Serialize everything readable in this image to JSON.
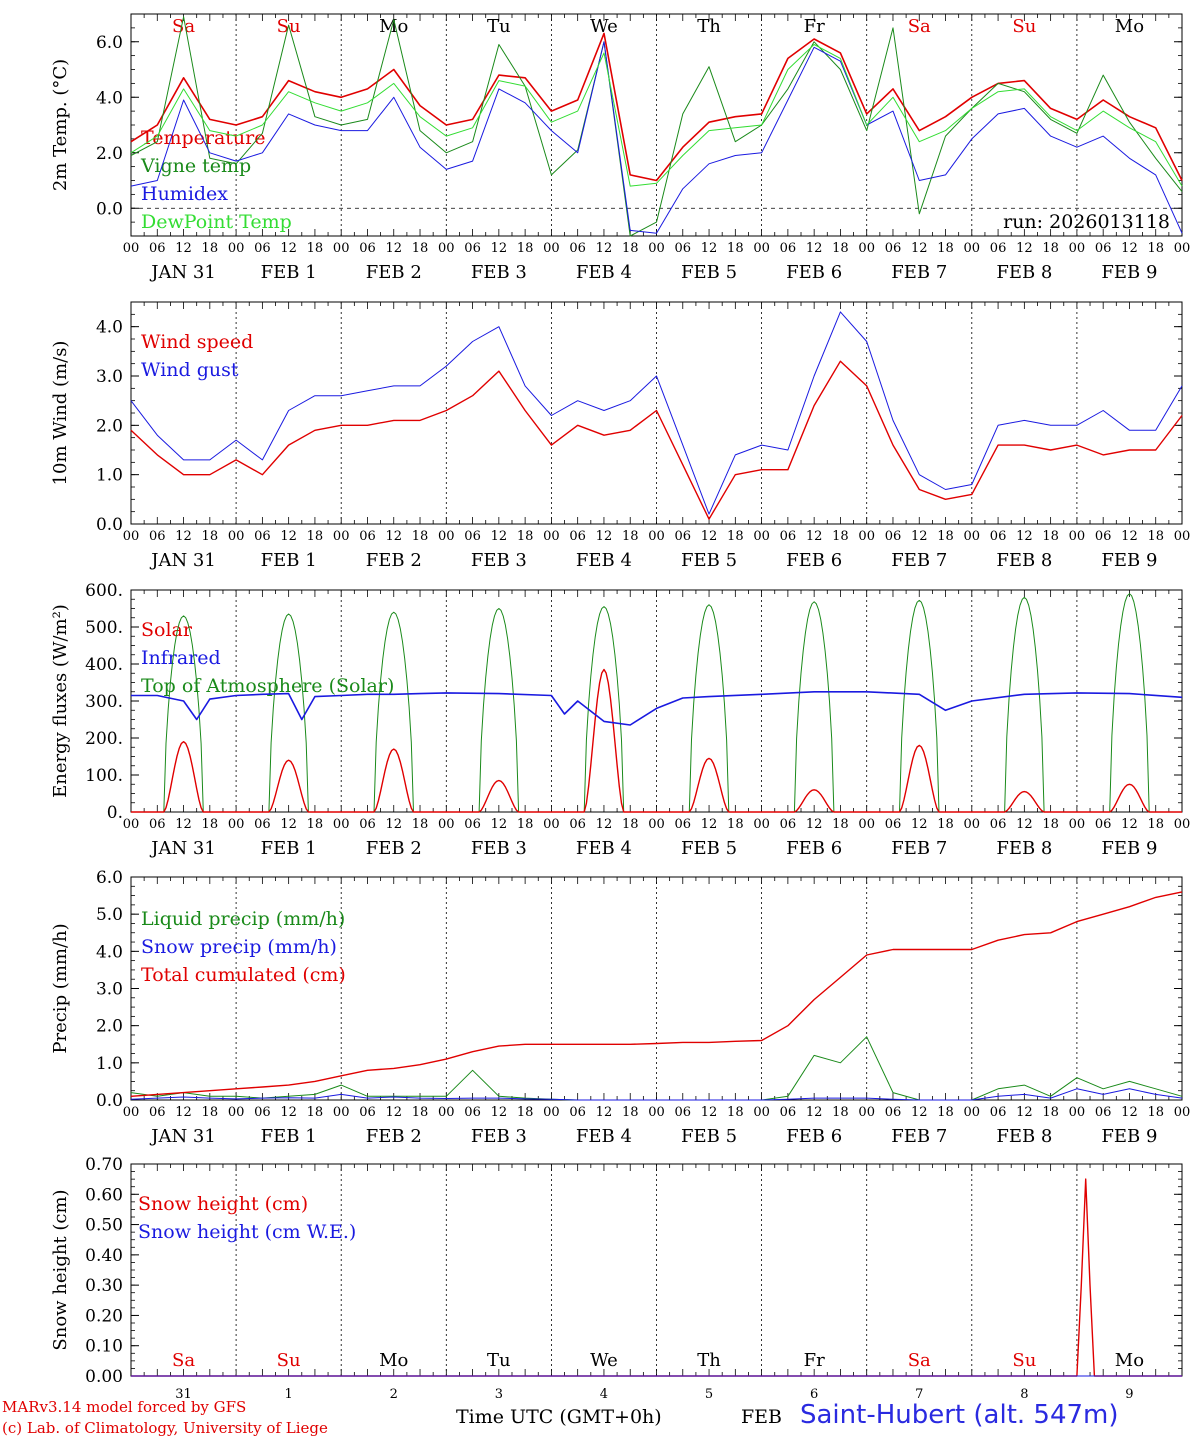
{
  "station_title": "Saint-Hubert (alt. 547m)",
  "credit_line1": "MARv3.14 model forced by GFS",
  "credit_line2": "(c) Lab. of Climatology, University of Liege",
  "xaxis_title": "Time UTC (GMT+0h)",
  "month_label": "FEB",
  "hour_ticks": [
    "00",
    "06",
    "12",
    "18"
  ],
  "last_tick": "00",
  "date_labels": [
    "JAN 31",
    "FEB  1",
    "FEB  2",
    "FEB  3",
    "FEB  4",
    "FEB  5",
    "FEB  6",
    "FEB  7",
    "FEB  8",
    "FEB  9"
  ],
  "day_names": [
    "Sa",
    "Su",
    "Mo",
    "Tu",
    "We",
    "Th",
    "Fr",
    "Sa",
    "Su",
    "Mo"
  ],
  "day_name_colors": [
    "#e00000",
    "#e00000",
    "#000000",
    "#000000",
    "#000000",
    "#000000",
    "#000000",
    "#e00000",
    "#e00000",
    "#000000"
  ],
  "day_numbers": [
    "31",
    "1",
    "2",
    "3",
    "4",
    "5",
    "6",
    "7",
    "8",
    "9"
  ],
  "colors": {
    "red": "#e00000",
    "green": "#1a8a1a",
    "blue": "#1a1ae0",
    "lightgreen": "#33dd33"
  },
  "run_label": "run: 2026013118",
  "chart_data": [
    {
      "type": "line",
      "ylabel": "2m Temp. (°C)",
      "ylim": [
        -1,
        7
      ],
      "yticks": [
        "0.0",
        "2.0",
        "4.0",
        "6.0"
      ],
      "ytick_values": [
        0,
        2,
        4,
        6
      ],
      "zero_line": true,
      "legend": [
        {
          "name": "Temperature",
          "color": "#e00000"
        },
        {
          "name": "Vigne temp",
          "color": "#1a8a1a"
        },
        {
          "name": "Humidex",
          "color": "#1a1ae0"
        },
        {
          "name": "DewPoint Temp",
          "color": "#33dd33"
        }
      ],
      "x_hours": [
        0,
        6,
        12,
        18,
        24,
        30,
        36,
        42,
        48,
        54,
        60,
        66,
        72,
        78,
        84,
        90,
        96,
        102,
        108,
        114,
        120,
        126,
        132,
        138,
        144,
        150,
        156,
        162,
        168,
        174,
        180,
        186,
        192,
        198,
        204,
        210,
        216,
        222,
        228,
        234,
        240
      ],
      "series": [
        {
          "name": "Temperature",
          "color": "#e00000",
          "width": 1.6,
          "values": [
            2.4,
            3.0,
            4.7,
            3.2,
            3.0,
            3.3,
            4.6,
            4.2,
            4.0,
            4.3,
            5.0,
            3.7,
            3.0,
            3.2,
            4.8,
            4.7,
            3.5,
            3.9,
            6.3,
            1.2,
            1.0,
            2.2,
            3.1,
            3.3,
            3.4,
            5.4,
            6.1,
            5.6,
            3.4,
            4.3,
            2.8,
            3.3,
            4.0,
            4.5,
            4.6,
            3.6,
            3.2,
            3.9,
            3.3,
            2.9,
            1.0
          ]
        },
        {
          "name": "Vigne temp",
          "color": "#1a8a1a",
          "width": 1.0,
          "values": [
            1.9,
            2.4,
            6.9,
            1.8,
            1.6,
            2.7,
            6.6,
            3.3,
            3.0,
            3.2,
            6.8,
            2.8,
            2.0,
            2.4,
            5.9,
            4.4,
            1.2,
            2.1,
            6.0,
            -1.2,
            -0.5,
            3.4,
            5.1,
            2.4,
            3.0,
            4.3,
            6.0,
            5.0,
            2.8,
            6.5,
            -0.2,
            2.6,
            3.6,
            4.5,
            4.2,
            3.2,
            2.7,
            4.8,
            3.1,
            1.8,
            0.6
          ]
        },
        {
          "name": "Humidex",
          "color": "#1a1ae0",
          "width": 1.0,
          "values": [
            0.8,
            1.0,
            3.9,
            2.0,
            1.7,
            2.0,
            3.4,
            3.0,
            2.8,
            2.8,
            4.0,
            2.2,
            1.4,
            1.7,
            4.3,
            3.8,
            2.8,
            2.0,
            6.0,
            -0.8,
            -0.9,
            0.7,
            1.6,
            1.9,
            2.0,
            3.9,
            5.8,
            5.3,
            3.0,
            3.5,
            1.0,
            1.2,
            2.5,
            3.4,
            3.6,
            2.6,
            2.2,
            2.6,
            1.8,
            1.2,
            -0.9
          ]
        },
        {
          "name": "DewPoint Temp",
          "color": "#33dd33",
          "width": 1.0,
          "values": [
            2.0,
            2.6,
            4.3,
            2.8,
            2.6,
            3.0,
            4.2,
            3.8,
            3.5,
            3.8,
            4.5,
            3.3,
            2.6,
            2.9,
            4.6,
            4.4,
            3.1,
            3.5,
            5.6,
            0.8,
            0.9,
            1.9,
            2.8,
            2.9,
            3.0,
            5.0,
            5.9,
            5.4,
            3.0,
            4.0,
            2.4,
            2.8,
            3.6,
            4.2,
            4.3,
            3.3,
            2.8,
            3.5,
            2.9,
            2.4,
            0.8
          ]
        }
      ]
    },
    {
      "type": "line",
      "ylabel": "10m Wind (m/s)",
      "ylim": [
        0,
        4.5
      ],
      "yticks": [
        "0.0",
        "1.0",
        "2.0",
        "3.0",
        "4.0"
      ],
      "ytick_values": [
        0,
        1,
        2,
        3,
        4
      ],
      "legend": [
        {
          "name": "Wind speed",
          "color": "#e00000"
        },
        {
          "name": "Wind gust",
          "color": "#1a1ae0"
        }
      ],
      "x_hours": [
        0,
        6,
        12,
        18,
        24,
        30,
        36,
        42,
        48,
        54,
        60,
        66,
        72,
        78,
        84,
        90,
        96,
        102,
        108,
        114,
        120,
        126,
        132,
        138,
        144,
        150,
        156,
        162,
        168,
        174,
        180,
        186,
        192,
        198,
        204,
        210,
        216,
        222,
        228,
        234,
        240
      ],
      "series": [
        {
          "name": "Wind speed",
          "color": "#e00000",
          "width": 1.4,
          "values": [
            1.9,
            1.4,
            1.0,
            1.0,
            1.3,
            1.0,
            1.6,
            1.9,
            2.0,
            2.0,
            2.1,
            2.1,
            2.3,
            2.6,
            3.1,
            2.3,
            1.6,
            2.0,
            1.8,
            1.9,
            2.3,
            1.2,
            0.1,
            1.0,
            1.1,
            1.1,
            2.4,
            3.3,
            2.8,
            1.6,
            0.7,
            0.5,
            0.6,
            1.6,
            1.6,
            1.5,
            1.6,
            1.4,
            1.5,
            1.5,
            2.2
          ]
        },
        {
          "name": "Wind gust",
          "color": "#1a1ae0",
          "width": 1.0,
          "values": [
            2.5,
            1.8,
            1.3,
            1.3,
            1.7,
            1.3,
            2.3,
            2.6,
            2.6,
            2.7,
            2.8,
            2.8,
            3.2,
            3.7,
            4.0,
            2.8,
            2.2,
            2.5,
            2.3,
            2.5,
            3.0,
            1.6,
            0.2,
            1.4,
            1.6,
            1.5,
            3.0,
            4.3,
            3.7,
            2.1,
            1.0,
            0.7,
            0.8,
            2.0,
            2.1,
            2.0,
            2.0,
            2.3,
            1.9,
            1.9,
            2.8
          ]
        }
      ]
    },
    {
      "type": "line",
      "ylabel": "Energy fluxes (W/m²)",
      "ylim": [
        0,
        600
      ],
      "yticks": [
        "0.",
        "100.",
        "200.",
        "300.",
        "400.",
        "500.",
        "600."
      ],
      "ytick_values": [
        0,
        100,
        200,
        300,
        400,
        500,
        600
      ],
      "legend": [
        {
          "name": "Solar",
          "color": "#e00000"
        },
        {
          "name": "Infrared",
          "color": "#1a1ae0"
        },
        {
          "name": "Top of Atmosphere (Solar)",
          "color": "#1a8a1a"
        }
      ],
      "solar_noon_hour": 12,
      "daylight_half_width_hours": 4.5,
      "toa_peaks": [
        530,
        535,
        540,
        550,
        555,
        560,
        568,
        572,
        580,
        590
      ],
      "solar_peaks": [
        190,
        140,
        170,
        85,
        385,
        145,
        60,
        180,
        55,
        75
      ],
      "infrared": {
        "x_hours": [
          0,
          6,
          12,
          15,
          18,
          24,
          30,
          36,
          39,
          42,
          48,
          54,
          60,
          66,
          72,
          84,
          96,
          99,
          102,
          108,
          114,
          120,
          126,
          132,
          144,
          156,
          168,
          180,
          186,
          192,
          204,
          216,
          228,
          240
        ],
        "values": [
          315,
          315,
          300,
          250,
          305,
          315,
          318,
          320,
          250,
          312,
          315,
          318,
          318,
          320,
          322,
          320,
          315,
          265,
          300,
          245,
          235,
          280,
          308,
          312,
          318,
          325,
          325,
          318,
          275,
          300,
          318,
          322,
          320,
          310
        ]
      },
      "series": [
        {
          "name": "Solar",
          "color": "#e00000",
          "width": 1.4
        },
        {
          "name": "Infrared",
          "color": "#1a1ae0",
          "width": 1.6
        },
        {
          "name": "Top of Atmosphere (Solar)",
          "color": "#1a8a1a",
          "width": 1.0
        }
      ]
    },
    {
      "type": "line",
      "ylabel": "Precip (mm/h)",
      "ylim": [
        0,
        6
      ],
      "yticks": [
        "0.0",
        "1.0",
        "2.0",
        "3.0",
        "4.0",
        "5.0",
        "6.0"
      ],
      "ytick_values": [
        0,
        1,
        2,
        3,
        4,
        5,
        6
      ],
      "legend": [
        {
          "name": "Liquid precip (mm/h)",
          "color": "#1a8a1a"
        },
        {
          "name": "Snow precip (mm/h)",
          "color": "#1a1ae0"
        },
        {
          "name": "Total cumulated (cm)",
          "color": "#e00000"
        }
      ],
      "x_hours": [
        0,
        6,
        12,
        18,
        24,
        30,
        36,
        42,
        48,
        54,
        60,
        66,
        72,
        78,
        84,
        90,
        96,
        102,
        108,
        114,
        120,
        126,
        132,
        138,
        144,
        150,
        156,
        162,
        168,
        174,
        180,
        186,
        192,
        198,
        204,
        210,
        216,
        222,
        228,
        234,
        240
      ],
      "series": [
        {
          "name": "Liquid precip (mm/h)",
          "color": "#1a8a1a",
          "width": 1.0,
          "values": [
            0.2,
            0.1,
            0.2,
            0.1,
            0.1,
            0.05,
            0.1,
            0.15,
            0.4,
            0.1,
            0.1,
            0.1,
            0.1,
            0.8,
            0.1,
            0.05,
            0.02,
            0.0,
            0.0,
            0.0,
            0.0,
            0.0,
            0.0,
            0.0,
            0.0,
            0.1,
            1.2,
            1.0,
            1.7,
            0.2,
            0.0,
            0.0,
            0.0,
            0.3,
            0.4,
            0.1,
            0.6,
            0.3,
            0.5,
            0.3,
            0.1
          ]
        },
        {
          "name": "Snow precip (mm/h)",
          "color": "#1a1ae0",
          "width": 1.0,
          "values": [
            0.02,
            0.05,
            0.08,
            0.05,
            0.03,
            0.05,
            0.06,
            0.05,
            0.15,
            0.05,
            0.08,
            0.05,
            0.04,
            0.05,
            0.05,
            0.03,
            0.02,
            0.0,
            0.0,
            0.0,
            0.0,
            0.0,
            0.0,
            0.0,
            0.0,
            0.02,
            0.05,
            0.05,
            0.05,
            0.02,
            0.0,
            0.0,
            0.0,
            0.1,
            0.15,
            0.05,
            0.3,
            0.15,
            0.3,
            0.15,
            0.05
          ]
        },
        {
          "name": "Total cumulated (cm)",
          "color": "#e00000",
          "width": 1.4,
          "values": [
            0.1,
            0.15,
            0.2,
            0.25,
            0.3,
            0.35,
            0.4,
            0.5,
            0.65,
            0.8,
            0.85,
            0.95,
            1.1,
            1.3,
            1.45,
            1.5,
            1.5,
            1.5,
            1.5,
            1.5,
            1.52,
            1.55,
            1.55,
            1.58,
            1.6,
            2.0,
            2.7,
            3.3,
            3.9,
            4.05,
            4.05,
            4.05,
            4.05,
            4.3,
            4.45,
            4.5,
            4.8,
            5.0,
            5.2,
            5.45,
            5.6
          ]
        }
      ]
    },
    {
      "type": "line",
      "ylabel": "Snow height (cm)",
      "ylim": [
        0,
        0.7
      ],
      "yticks": [
        "0.00",
        "0.10",
        "0.20",
        "0.30",
        "0.40",
        "0.50",
        "0.60",
        "0.70"
      ],
      "ytick_values": [
        0,
        0.1,
        0.2,
        0.3,
        0.4,
        0.5,
        0.6,
        0.7
      ],
      "legend": [
        {
          "name": "Snow height (cm)",
          "color": "#e00000"
        },
        {
          "name": "Snow height (cm W.E.)",
          "color": "#1a1ae0"
        }
      ],
      "x_hours": [
        0,
        216,
        217,
        218,
        219,
        220,
        240
      ],
      "series": [
        {
          "name": "Snow height (cm)",
          "color": "#e00000",
          "width": 1.4,
          "values": [
            0,
            0,
            0.3,
            0.65,
            0.3,
            0,
            0
          ]
        },
        {
          "name": "Snow height (cm W.E.)",
          "color": "#1a1ae0",
          "width": 1.0,
          "values": [
            0,
            0,
            0,
            0,
            0,
            0,
            0
          ]
        }
      ]
    }
  ]
}
